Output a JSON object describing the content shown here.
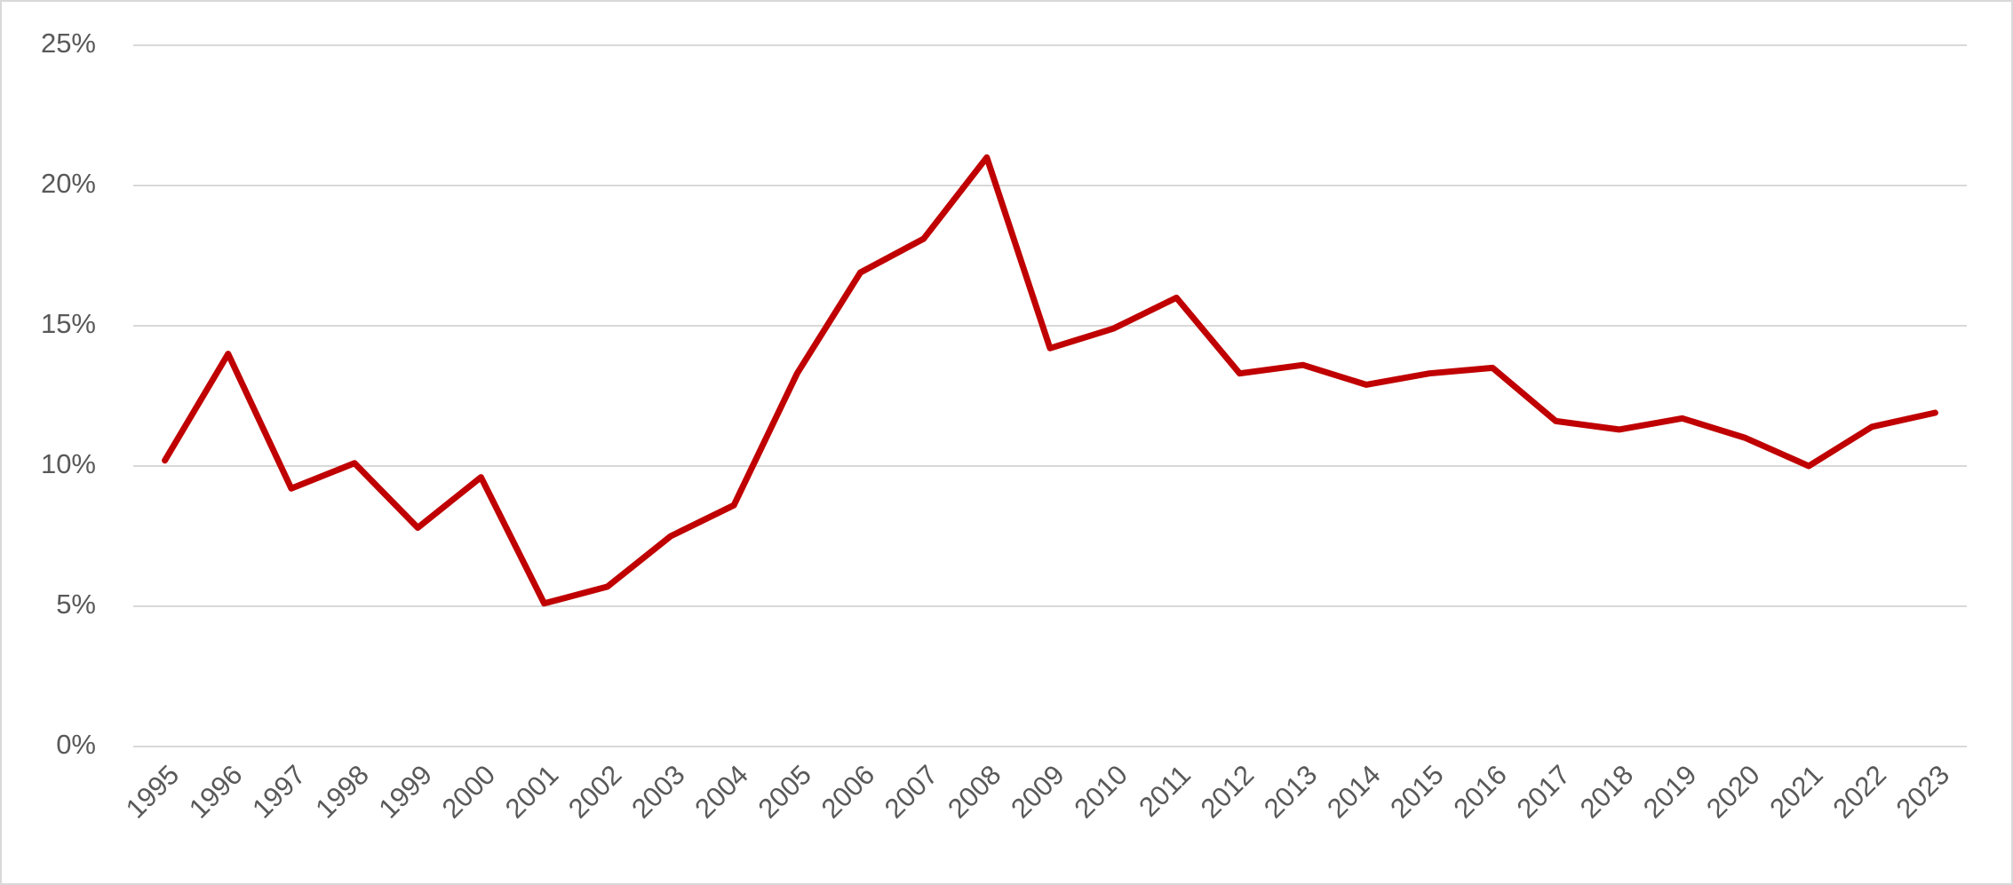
{
  "chart_data": {
    "type": "line",
    "categories": [
      "1995",
      "1996",
      "1997",
      "1998",
      "1999",
      "2000",
      "2001",
      "2002",
      "2003",
      "2004",
      "2005",
      "2006",
      "2007",
      "2008",
      "2009",
      "2010",
      "2011",
      "2012",
      "2013",
      "2014",
      "2015",
      "2016",
      "2017",
      "2018",
      "2019",
      "2020",
      "2021",
      "2022",
      "2023"
    ],
    "values": [
      10.2,
      14.0,
      9.2,
      10.1,
      7.8,
      9.6,
      5.1,
      5.7,
      7.5,
      8.6,
      13.3,
      16.9,
      18.1,
      21.0,
      14.2,
      14.9,
      16.0,
      13.3,
      13.6,
      12.9,
      13.3,
      13.5,
      11.6,
      11.3,
      11.7,
      11.0,
      10.0,
      11.4,
      11.9
    ],
    "color": "#c00000",
    "ylim": [
      0,
      25
    ],
    "yticks": [
      {
        "value": 0,
        "label": "0%"
      },
      {
        "value": 5,
        "label": "5%"
      },
      {
        "value": 10,
        "label": "10%"
      },
      {
        "value": 15,
        "label": "15%"
      },
      {
        "value": 20,
        "label": "20%"
      },
      {
        "value": 25,
        "label": "25%"
      }
    ],
    "grid": true
  }
}
